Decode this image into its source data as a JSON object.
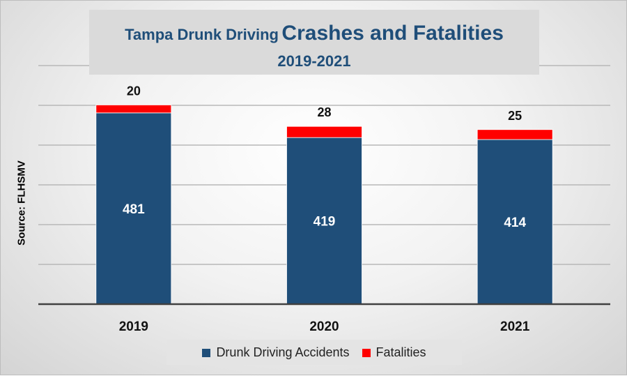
{
  "chart_data": {
    "type": "bar",
    "stacked": true,
    "title": "Tampa Drunk Driving Crashes and Fatalities",
    "title_parts": [
      "Tampa Drunk Driving",
      "Crashes and Fatalities"
    ],
    "subtitle": "2019-2021",
    "ylabel": "Source: FLHSMV",
    "xlabel": "",
    "categories": [
      "2019",
      "2020",
      "2021"
    ],
    "ylim": [
      0,
      600
    ],
    "grid": true,
    "y_axis_labels_shown": false,
    "legend_position": "bottom",
    "series": [
      {
        "name": "Drunk Driving Accidents",
        "values": [
          481,
          419,
          414
        ],
        "color": "#1f4e79"
      },
      {
        "name": "Fatalities",
        "values": [
          20,
          28,
          25
        ],
        "color": "#ff0000"
      }
    ]
  }
}
